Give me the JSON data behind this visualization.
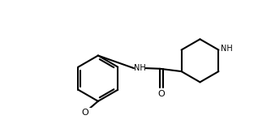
{
  "line_color": "#000000",
  "bg_color": "#ffffff",
  "bond_width": 1.5,
  "figsize": [
    3.34,
    1.53
  ],
  "dpi": 100,
  "NH_label": "NH",
  "O_carbonyl_label": "O",
  "NH_ring_label": "NH",
  "methoxy_O_label": "O"
}
